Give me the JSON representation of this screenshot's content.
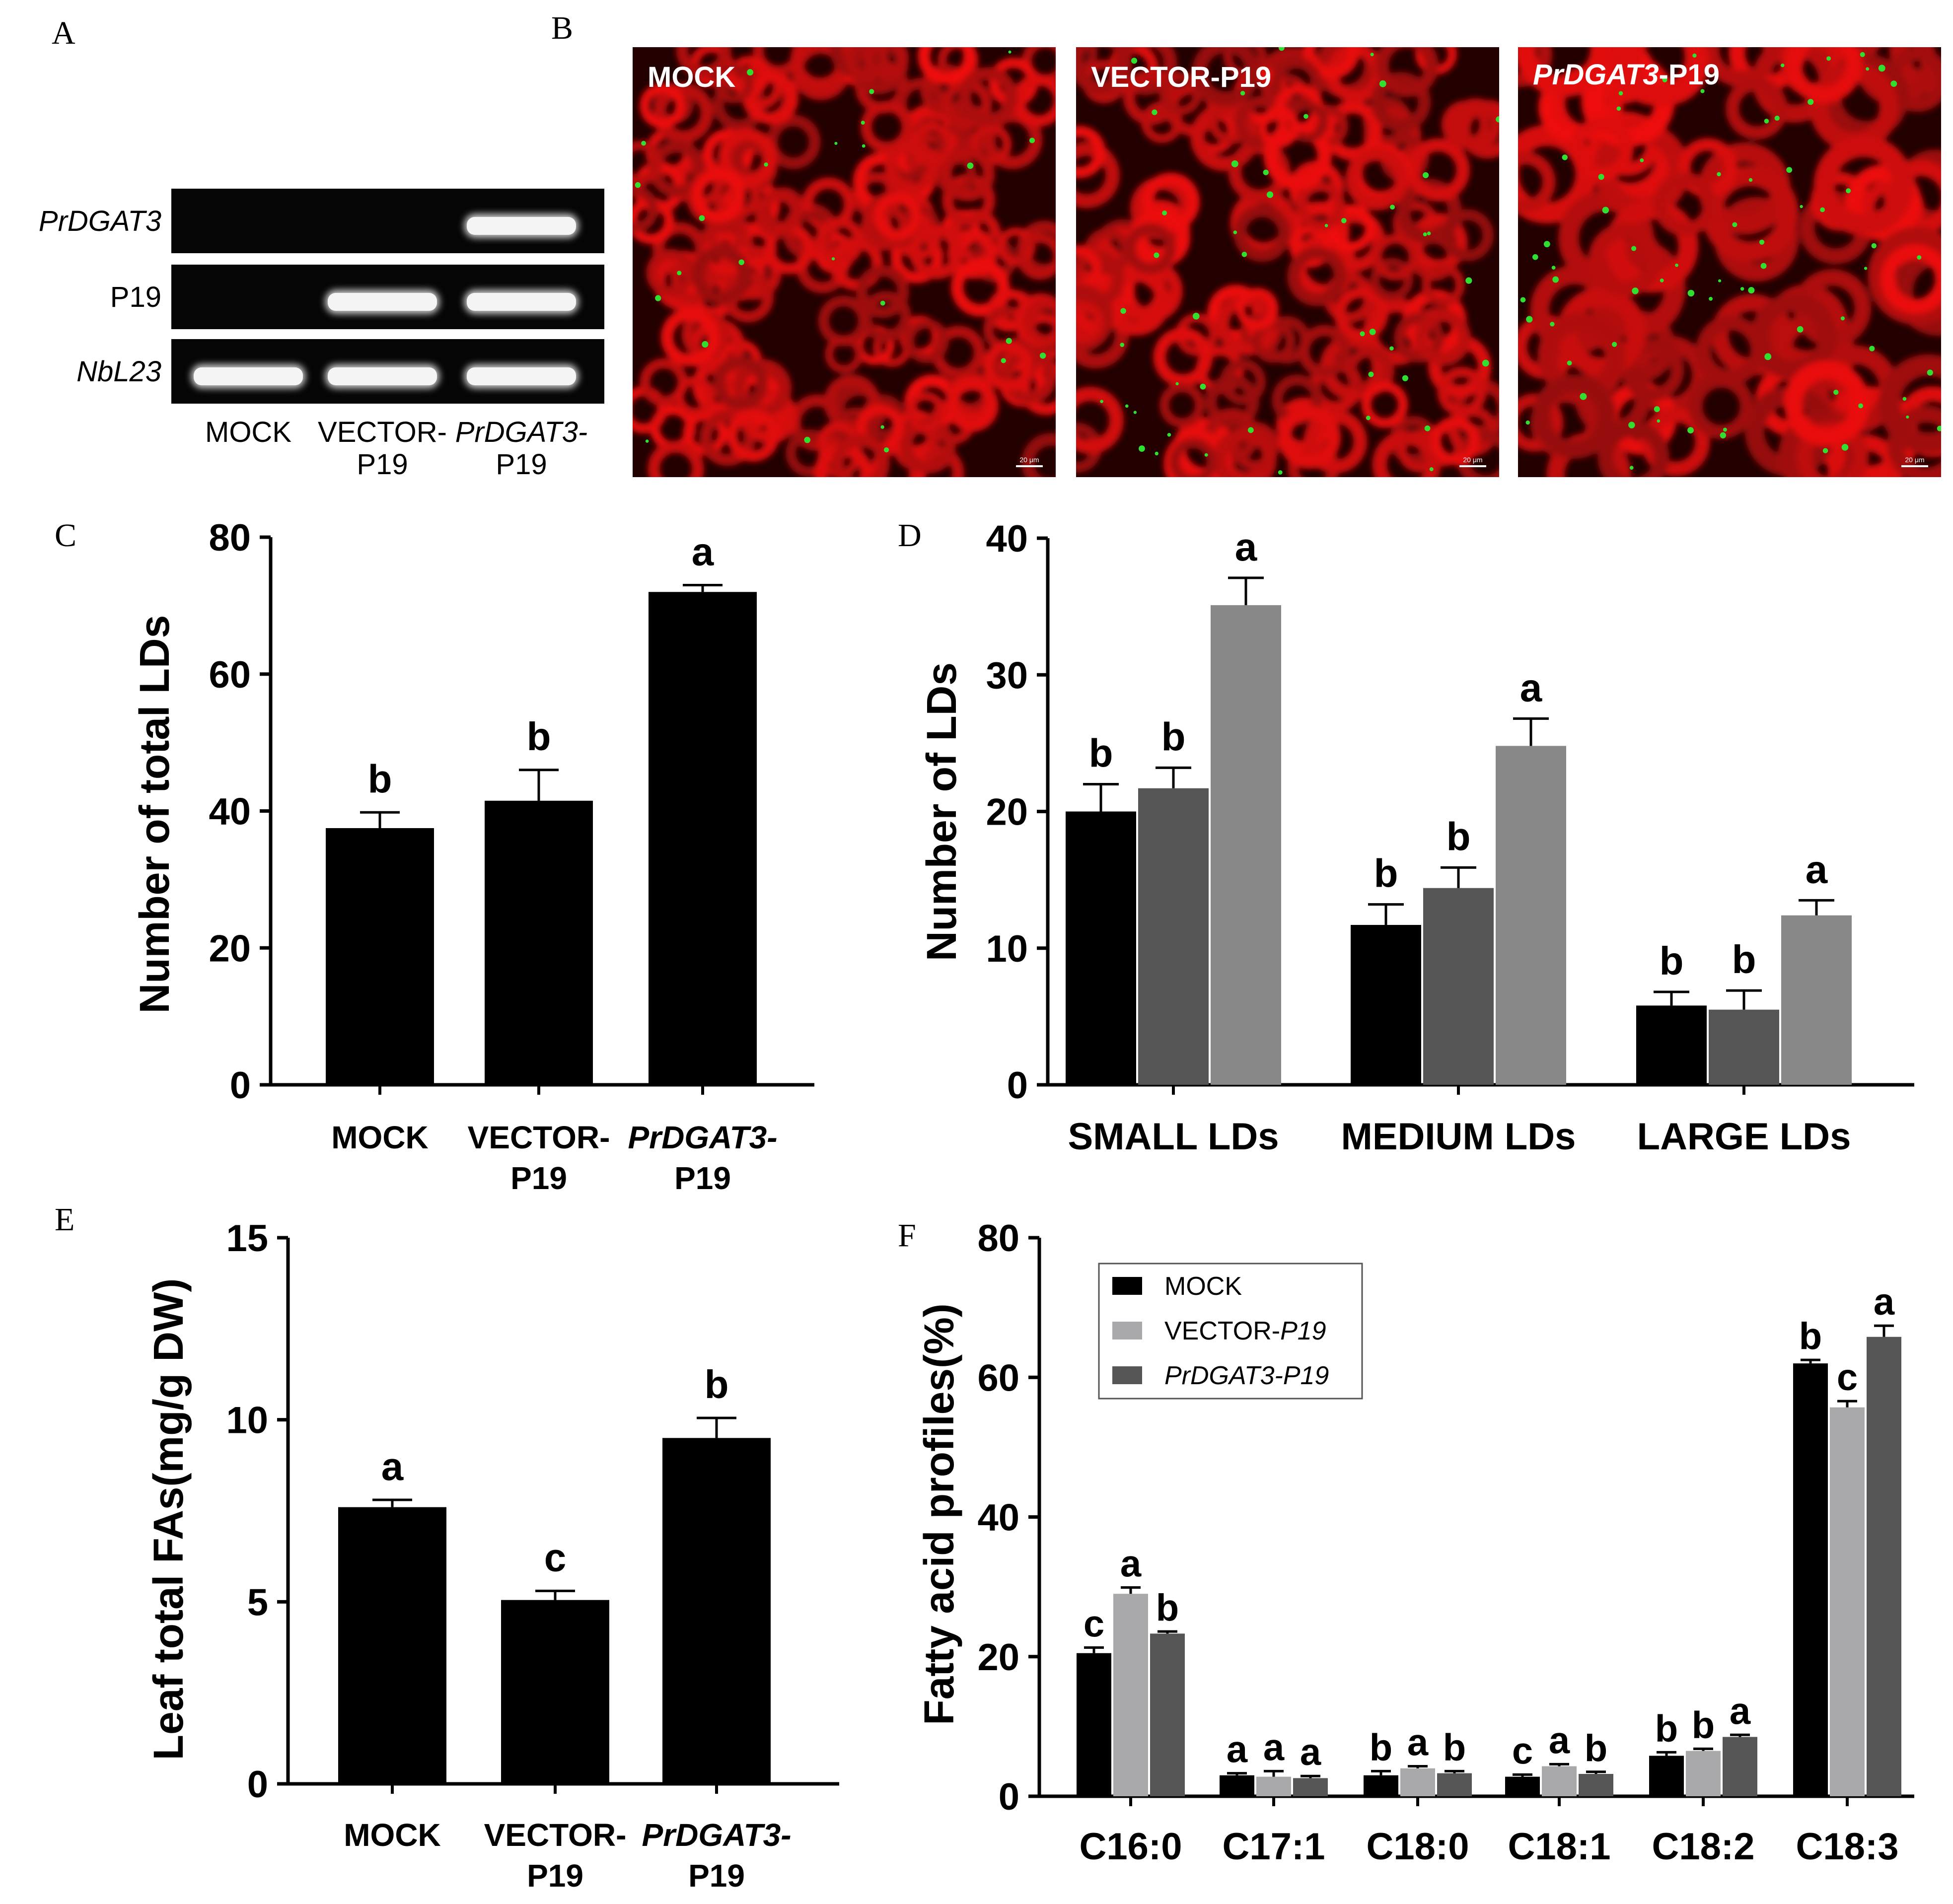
{
  "panels": {
    "A": "A",
    "B": "B",
    "C": "C",
    "D": "D",
    "E": "E",
    "F": "F"
  },
  "gel": {
    "rows": [
      {
        "label": "PrDGAT3",
        "italic": true,
        "bands": [
          false,
          false,
          true
        ]
      },
      {
        "label": "P19",
        "italic": false,
        "bands": [
          false,
          true,
          true
        ]
      },
      {
        "label": "NbL23",
        "italic": true,
        "bands": [
          true,
          true,
          true
        ]
      }
    ],
    "lanes": [
      {
        "line1": "MOCK",
        "line2": ""
      },
      {
        "line1": "VECTOR-",
        "line2": "P19"
      },
      {
        "line1": "PrDGAT3-",
        "line2": "P19"
      }
    ]
  },
  "micrographs": [
    {
      "title": "MOCK",
      "scale": "20 μm"
    },
    {
      "title": "VECTOR-P19",
      "scale": "20 μm"
    },
    {
      "title_italic": "PrDGAT3",
      "title_rest": "-P19",
      "scale": "20 μm"
    }
  ],
  "colors": {
    "black_bar": "#000000",
    "dark_gray_bar": "#555555",
    "mid_gray_bar": "#888888",
    "light_gray_bar": "#a9a9ab",
    "confocal_red": "#d01010",
    "lipid_green": "#30e030"
  },
  "chart_data": [
    {
      "panel": "C",
      "type": "bar",
      "categories": [
        "MOCK",
        "VECTOR-\nP19",
        "PrDGAT3-\nP19"
      ],
      "values": [
        37.5,
        41.5,
        72
      ],
      "errors": [
        2.3,
        4.5,
        1
      ],
      "letters": [
        "b",
        "b",
        "a"
      ],
      "ylabel": "Number of total LDs",
      "ylim": [
        0,
        80
      ],
      "yticks": [
        0,
        20,
        40,
        60,
        80
      ]
    },
    {
      "panel": "D",
      "type": "bar",
      "categories": [
        "SMALL LDs",
        "MEDIUM LDs",
        "LARGE LDs"
      ],
      "series": [
        {
          "values": [
            20,
            11.7,
            5.8
          ],
          "errors": [
            2,
            1.5,
            1
          ],
          "letters": [
            "b",
            "b",
            "b"
          ]
        },
        {
          "values": [
            21.7,
            14.4,
            5.5
          ],
          "errors": [
            1.5,
            1.5,
            1.4
          ],
          "letters": [
            "b",
            "b",
            "b"
          ]
        },
        {
          "values": [
            35.1,
            24.8,
            12.4
          ],
          "errors": [
            2,
            2,
            1.1
          ],
          "letters": [
            "a",
            "a",
            "a"
          ]
        }
      ],
      "ylabel": "Number of LDs",
      "ylim": [
        0,
        40
      ],
      "yticks": [
        0,
        10,
        20,
        30,
        40
      ]
    },
    {
      "panel": "E",
      "type": "bar",
      "categories": [
        "MOCK",
        "VECTOR-\nP19",
        "PrDGAT3-\nP19"
      ],
      "values": [
        7.6,
        5.05,
        9.5
      ],
      "errors": [
        0.2,
        0.25,
        0.55
      ],
      "letters": [
        "a",
        "c",
        "b"
      ],
      "ylabel": "Leaf total FAs(mg/g DW)",
      "ylim": [
        0,
        15
      ],
      "yticks": [
        0,
        5,
        10,
        15
      ]
    },
    {
      "panel": "F",
      "type": "bar",
      "categories": [
        "C16:0",
        "C17:1",
        "C18:0",
        "C18:1",
        "C18:2",
        "C18:3"
      ],
      "series": [
        {
          "name": "MOCK",
          "values": [
            20.5,
            3,
            3,
            2.8,
            5.8,
            62
          ],
          "errors": [
            0.8,
            0.3,
            0.6,
            0.3,
            0.5,
            0.5
          ],
          "letters": [
            "c",
            "a",
            "b",
            "c",
            "b",
            "b"
          ]
        },
        {
          "name": "VECTOR-P19",
          "values": [
            29,
            2.8,
            4,
            4.3,
            6.5,
            55.7
          ],
          "errors": [
            0.9,
            0.8,
            0.3,
            0.3,
            0.3,
            0.9
          ],
          "letters": [
            "a",
            "a",
            "a",
            "a",
            "b",
            "c"
          ]
        },
        {
          "name": "PrDGAT3-P19",
          "values": [
            23.3,
            2.6,
            3.3,
            3.2,
            8.5,
            65.8
          ],
          "errors": [
            0.3,
            0.3,
            0.3,
            0.3,
            0.3,
            1.6
          ],
          "letters": [
            "b",
            "a",
            "b",
            "b",
            "a",
            "a"
          ]
        }
      ],
      "ylabel": "Fatty acid profiles(%)",
      "ylim": [
        0,
        80
      ],
      "yticks": [
        0,
        20,
        40,
        60,
        80
      ],
      "legend": {
        "position": "top-left",
        "entries": [
          "MOCK",
          "VECTOR-P19",
          "PrDGAT3-P19"
        ]
      }
    }
  ]
}
